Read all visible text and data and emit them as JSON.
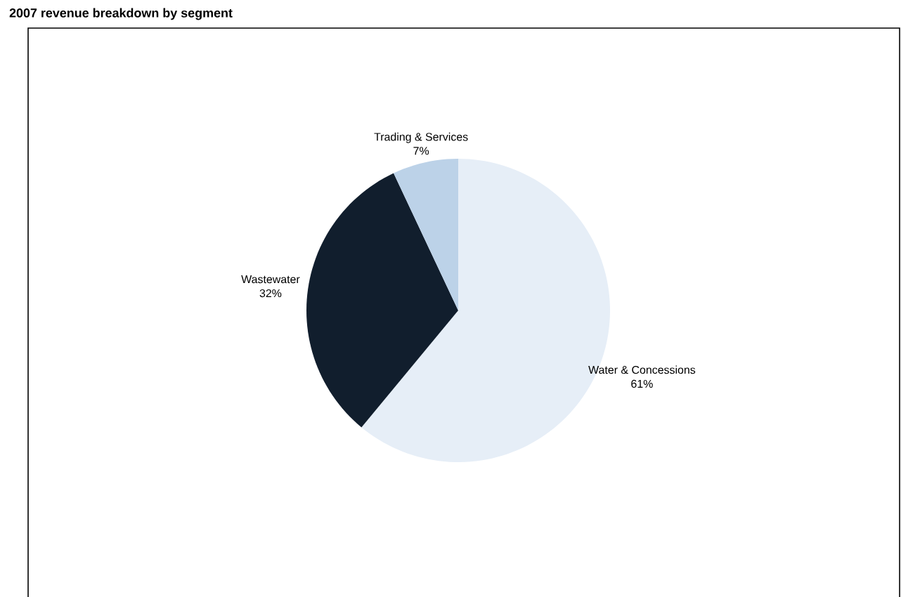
{
  "chart_data": {
    "type": "pie",
    "title": "2007 revenue breakdown by segment",
    "categories": [
      "Water & Concessions",
      "Wastewater",
      "Trading & Services"
    ],
    "values": [
      61,
      32,
      7
    ],
    "value_labels": [
      "61%",
      "32%",
      "7%"
    ],
    "colors": [
      "#e6eef7",
      "#111e2d",
      "#bcd2e8"
    ]
  }
}
